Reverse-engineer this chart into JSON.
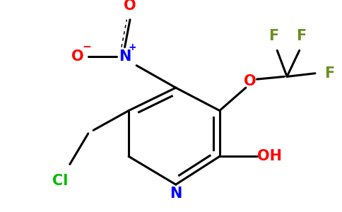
{
  "bg_color": "#ffffff",
  "bond_color": "#000000",
  "bond_width": 2.2,
  "colors": {
    "N_blue": "#0000ff",
    "O_red": "#ff0000",
    "F_green": "#6b8e23",
    "Cl_green": "#00bb00",
    "C_black": "#000000"
  },
  "figsize": [
    4.84,
    3.0
  ],
  "dpi": 100,
  "xlim": [
    0,
    484
  ],
  "ylim": [
    0,
    300
  ]
}
